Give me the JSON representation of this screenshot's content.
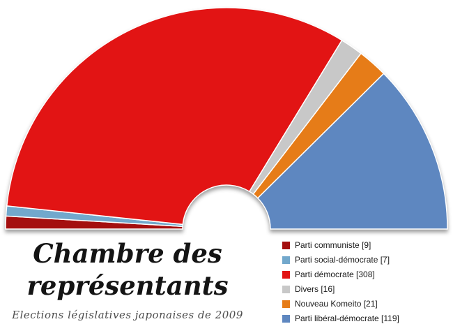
{
  "title": {
    "line1": "Chambre des",
    "line2": "représentants"
  },
  "subtitle": "Elections législatives japonaises de 2009",
  "chart_data": {
    "type": "pie",
    "variant": "hemicycle-parliament",
    "title": "Chambre des représentants",
    "subtitle": "Elections législatives japonaises de 2009",
    "total_seats": 480,
    "start_angle_deg": 180,
    "end_angle_deg": 0,
    "legend_position": "bottom-right",
    "categories": [
      "Parti communiste",
      "Parti social-démocrate",
      "Parti démocrate",
      "Divers",
      "Nouveau Komeito",
      "Parti libéral-démocrate"
    ],
    "values": [
      9,
      7,
      308,
      16,
      21,
      119
    ],
    "colors": [
      "#a40f0f",
      "#72a8cc",
      "#e21414",
      "#c8c8c8",
      "#e67c18",
      "#5e87c0"
    ],
    "ids": [
      "communiste",
      "social-democrate",
      "democrate",
      "divers",
      "komeito",
      "liberal-democrate"
    ],
    "legend": [
      {
        "label": "Parti communiste",
        "seats": 9,
        "display": "Parti communiste  [9]"
      },
      {
        "label": "Parti social-démocrate",
        "seats": 7,
        "display": "Parti social-démocrate  [7]"
      },
      {
        "label": "Parti démocrate",
        "seats": 308,
        "display": "Parti démocrate  [308]"
      },
      {
        "label": "Divers",
        "seats": 16,
        "display": "Divers [16]"
      },
      {
        "label": "Nouveau Komeito",
        "seats": 21,
        "display": "Nouveau Komeito  [21]"
      },
      {
        "label": "Parti libéral-démocrate",
        "seats": 119,
        "display": "Parti libéral-démocrate  [119]"
      }
    ]
  }
}
